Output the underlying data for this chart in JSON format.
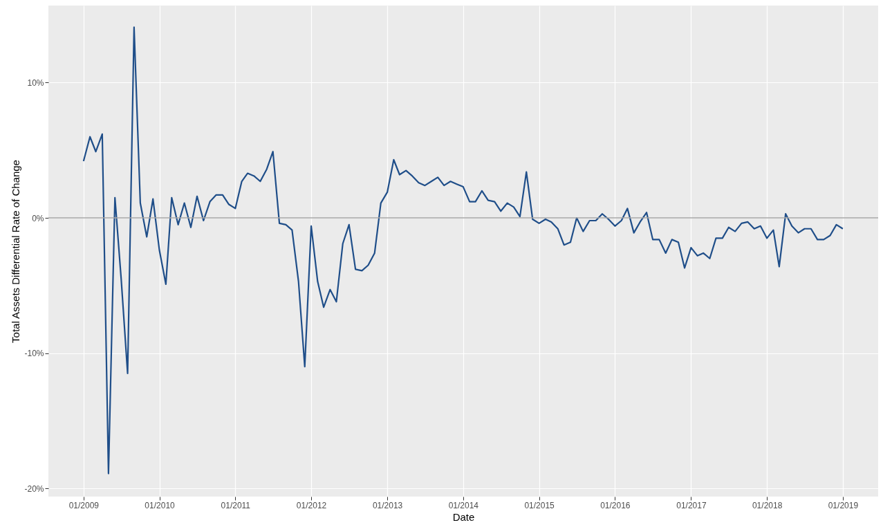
{
  "chart_data": {
    "type": "line",
    "xlabel": "Date",
    "ylabel": "Total Assets Differential Rate of Change",
    "x": [
      "2009-01",
      "2009-02",
      "2009-03",
      "2009-04",
      "2009-05",
      "2009-06",
      "2009-07",
      "2009-08",
      "2009-09",
      "2009-10",
      "2009-11",
      "2009-12",
      "2010-01",
      "2010-02",
      "2010-03",
      "2010-04",
      "2010-05",
      "2010-06",
      "2010-07",
      "2010-08",
      "2010-09",
      "2010-10",
      "2010-11",
      "2010-12",
      "2011-01",
      "2011-02",
      "2011-03",
      "2011-04",
      "2011-05",
      "2011-06",
      "2011-07",
      "2011-08",
      "2011-09",
      "2011-10",
      "2011-11",
      "2011-12",
      "2012-01",
      "2012-02",
      "2012-03",
      "2012-04",
      "2012-05",
      "2012-06",
      "2012-07",
      "2012-08",
      "2012-09",
      "2012-10",
      "2012-11",
      "2012-12",
      "2013-01",
      "2013-02",
      "2013-03",
      "2013-04",
      "2013-05",
      "2013-06",
      "2013-07",
      "2013-08",
      "2013-09",
      "2013-10",
      "2013-11",
      "2013-12",
      "2014-01",
      "2014-02",
      "2014-03",
      "2014-04",
      "2014-05",
      "2014-06",
      "2014-07",
      "2014-08",
      "2014-09",
      "2014-10",
      "2014-11",
      "2014-12",
      "2015-01",
      "2015-02",
      "2015-03",
      "2015-04",
      "2015-05",
      "2015-06",
      "2015-07",
      "2015-08",
      "2015-09",
      "2015-10",
      "2015-11",
      "2015-12",
      "2016-01",
      "2016-02",
      "2016-03",
      "2016-04",
      "2016-05",
      "2016-06",
      "2016-07",
      "2016-08",
      "2016-09",
      "2016-10",
      "2016-11",
      "2016-12",
      "2017-01",
      "2017-02",
      "2017-03",
      "2017-04",
      "2017-05",
      "2017-06",
      "2017-07",
      "2017-08",
      "2017-09",
      "2017-10",
      "2017-11",
      "2017-12",
      "2018-01",
      "2018-02",
      "2018-03",
      "2018-04",
      "2018-05",
      "2018-06",
      "2018-07",
      "2018-08",
      "2018-09",
      "2018-10",
      "2018-11",
      "2018-12",
      "2019-01"
    ],
    "series": [
      {
        "color": "#1f4e89",
        "values": [
          4.2,
          6.0,
          4.9,
          6.2,
          -18.9,
          1.5,
          -4.5,
          -11.5,
          14.1,
          1.1,
          -1.4,
          1.4,
          -2.4,
          -4.9,
          1.5,
          -0.5,
          1.1,
          -0.7,
          1.6,
          -0.2,
          1.2,
          1.7,
          1.7,
          1.0,
          0.7,
          2.7,
          3.3,
          3.1,
          2.7,
          3.6,
          4.9,
          -0.4,
          -0.5,
          -0.9,
          -4.7,
          -11.0,
          -0.6,
          -4.7,
          -6.6,
          -5.3,
          -6.2,
          -1.9,
          -0.5,
          -3.8,
          -3.9,
          -3.5,
          -2.6,
          1.1,
          1.9,
          4.3,
          3.2,
          3.5,
          3.1,
          2.6,
          2.4,
          2.7,
          3.0,
          2.4,
          2.7,
          2.5,
          2.3,
          1.2,
          1.2,
          2.0,
          1.3,
          1.2,
          0.5,
          1.1,
          0.8,
          0.1,
          3.4,
          -0.1,
          -0.4,
          -0.1,
          -0.3,
          -0.8,
          -2.0,
          -1.8,
          0.0,
          -1.0,
          -0.2,
          -0.2,
          0.3,
          -0.1,
          -0.6,
          -0.2,
          0.7,
          -1.1,
          -0.3,
          0.4,
          -1.6,
          -1.6,
          -2.6,
          -1.6,
          -1.8,
          -3.7,
          -2.2,
          -2.8,
          -2.6,
          -3.0,
          -1.5,
          -1.5,
          -0.7,
          -1.0,
          -0.4,
          -0.3,
          -0.8,
          -0.6,
          -1.5,
          -0.9,
          -3.6,
          0.3,
          -0.6,
          -1.1,
          -0.8,
          -0.8,
          -1.6,
          -1.6,
          -1.3,
          -0.5,
          -0.8
        ]
      }
    ],
    "xlim": [
      "2008-07-16",
      "2019-06-20"
    ],
    "xticks": [
      {
        "value": "2009-01-01",
        "label": "01/2009"
      },
      {
        "value": "2010-01-01",
        "label": "01/2010"
      },
      {
        "value": "2011-01-01",
        "label": "01/2011"
      },
      {
        "value": "2012-01-01",
        "label": "01/2012"
      },
      {
        "value": "2013-01-01",
        "label": "01/2013"
      },
      {
        "value": "2014-01-01",
        "label": "01/2014"
      },
      {
        "value": "2015-01-01",
        "label": "01/2015"
      },
      {
        "value": "2016-01-01",
        "label": "01/2016"
      },
      {
        "value": "2017-01-01",
        "label": "01/2017"
      },
      {
        "value": "2018-01-01",
        "label": "01/2018"
      },
      {
        "value": "2019-01-01",
        "label": "01/2019"
      }
    ],
    "ylim": [
      -20.6,
      15.7
    ],
    "yticks": [
      {
        "value": -20,
        "label": "-20%"
      },
      {
        "value": -10,
        "label": "-10%"
      },
      {
        "value": 0,
        "label": "0%"
      },
      {
        "value": 10,
        "label": "10%"
      }
    ],
    "ref_lines": [
      {
        "axis": "y",
        "value": 0,
        "color": "#a6a6a6"
      }
    ],
    "grid": true,
    "line_style": "solid"
  }
}
